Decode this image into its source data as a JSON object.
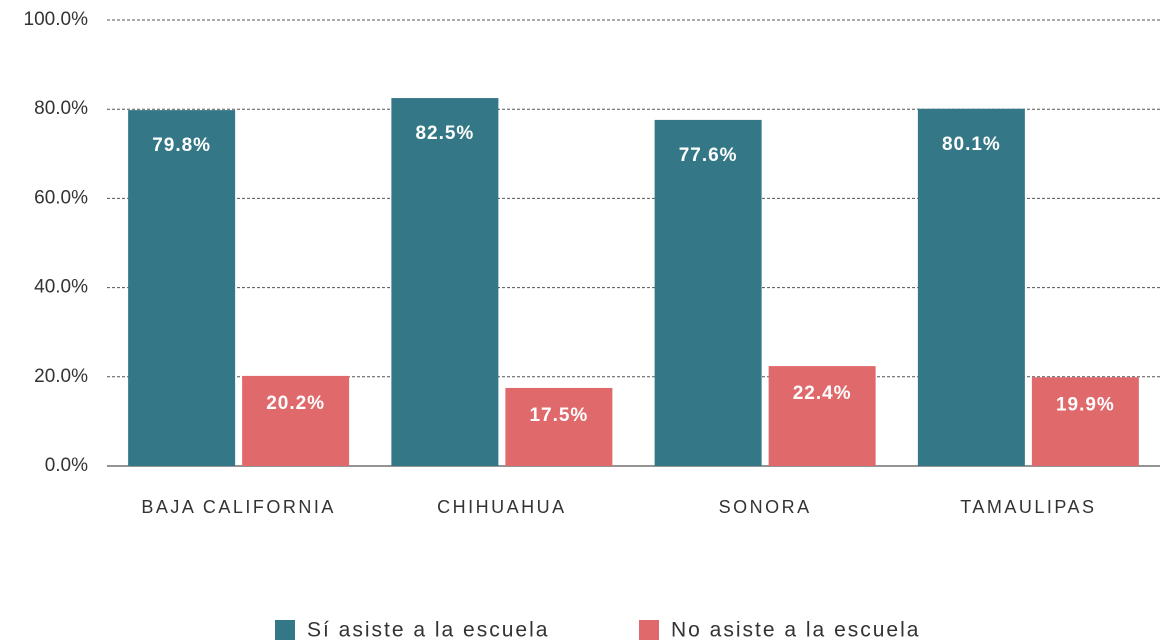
{
  "chart_data": {
    "type": "bar",
    "categories": [
      "BAJA CALIFORNIA",
      "CHIHUAHUA",
      "SONORA",
      "TAMAULIPAS"
    ],
    "series": [
      {
        "name": "Sí asiste a la escuela",
        "color": "#347887",
        "values": [
          79.8,
          82.5,
          77.6,
          80.1
        ],
        "value_labels": [
          "79.8%",
          "82.5%",
          "77.6%",
          "80.1%"
        ]
      },
      {
        "name": "No asiste a la escuela",
        "color": "#e0696b",
        "values": [
          20.2,
          17.5,
          22.4,
          19.9
        ],
        "value_labels": [
          "20.2%",
          "17.5%",
          "22.4%",
          "19.9%"
        ]
      }
    ],
    "ylim": [
      0,
      100
    ],
    "yticks": [
      {
        "value": 0,
        "label": "0.0%"
      },
      {
        "value": 20,
        "label": "20.0%"
      },
      {
        "value": 40,
        "label": "40.0%"
      },
      {
        "value": 60,
        "label": "60.0%"
      },
      {
        "value": 80,
        "label": "80.0%"
      },
      {
        "value": 100,
        "label": "100.0%"
      }
    ],
    "grid": true,
    "legend": "bottom"
  }
}
